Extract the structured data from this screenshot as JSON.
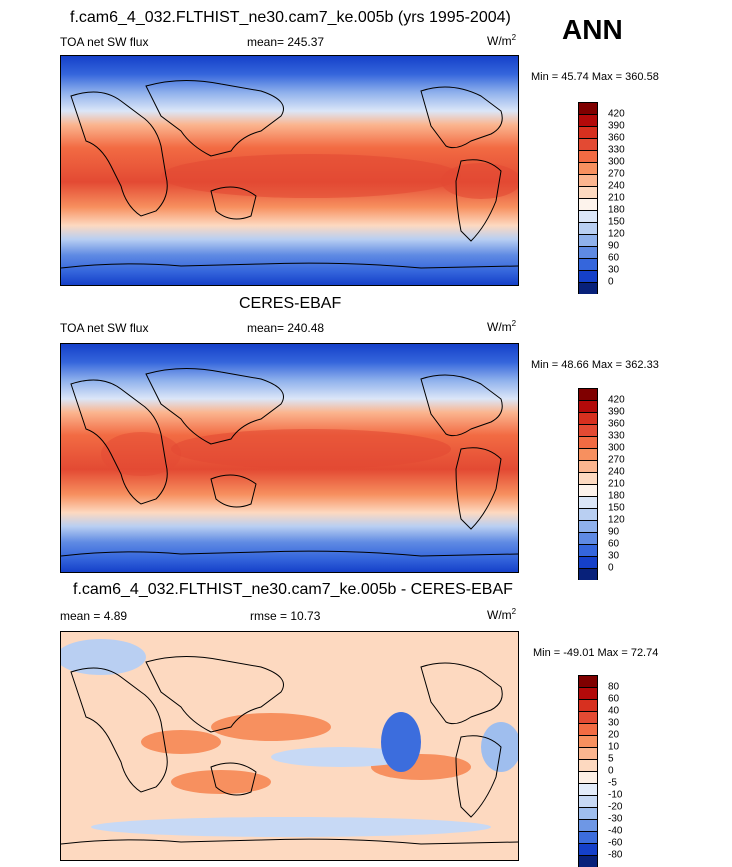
{
  "season": "ANN",
  "panel1": {
    "title": "f.cam6_4_032.FLTHIST_ne30.cam7_ke.005b (yrs 1995-2004)",
    "left": "TOA net SW flux",
    "center": "mean= 245.37",
    "unit_base": "W/m",
    "unit_exp": "2",
    "minmax": "Min =  45.74 Max = 360.58"
  },
  "panel2": {
    "title": "CERES-EBAF",
    "left": "TOA net SW flux",
    "center": "mean= 240.48",
    "unit_base": "W/m",
    "unit_exp": "2",
    "minmax": "Min =  48.66 Max = 362.33"
  },
  "panel3": {
    "title": "f.cam6_4_032.FLTHIST_ne30.cam7_ke.005b - CERES-EBAF",
    "left": "mean =   4.89",
    "center": "rmse =  10.73",
    "unit_base": "W/m",
    "unit_exp": "2",
    "minmax": "Min = -49.01 Max =  72.74"
  },
  "colorbar_abs": {
    "labels": [
      "420",
      "390",
      "360",
      "330",
      "300",
      "270",
      "240",
      "210",
      "180",
      "150",
      "120",
      "90",
      "60",
      "30",
      "0"
    ],
    "colors": [
      "#7f0000",
      "#b30a0a",
      "#d7301f",
      "#e34a33",
      "#f26b43",
      "#f7905f",
      "#fbb58f",
      "#fdd9c0",
      "#fdf3ec",
      "#dbe6f8",
      "#b9cff2",
      "#8fb1ec",
      "#5f8ae3",
      "#3566dc",
      "#1540c9",
      "#08217a"
    ]
  },
  "colorbar_diff": {
    "labels": [
      "80",
      "60",
      "40",
      "30",
      "20",
      "10",
      "5",
      "0",
      "-5",
      "-10",
      "-20",
      "-30",
      "-40",
      "-60",
      "-80"
    ],
    "colors": [
      "#7f0000",
      "#b30a0a",
      "#d7301f",
      "#e34a33",
      "#f26b43",
      "#f7905f",
      "#fbb58f",
      "#fdd9c0",
      "#fdf0e6",
      "#e3ecfa",
      "#c7d9f5",
      "#9fbeee",
      "#6e97e5",
      "#3c6ddd",
      "#1540c9",
      "#08217a"
    ]
  }
}
